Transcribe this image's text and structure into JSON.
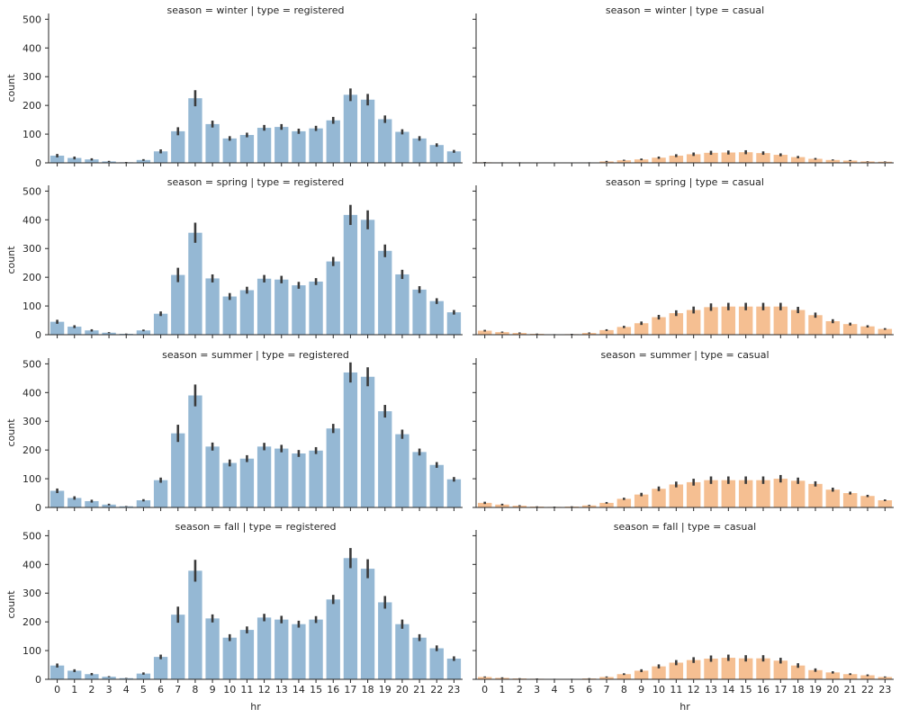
{
  "chart_data": {
    "type": "bar",
    "x_label": "hr",
    "y_label": "count",
    "ylim": [
      0,
      520
    ],
    "y_ticks": [
      0,
      100,
      200,
      300,
      400,
      500
    ],
    "categories": [
      "0",
      "1",
      "2",
      "3",
      "4",
      "5",
      "6",
      "7",
      "8",
      "9",
      "10",
      "11",
      "12",
      "13",
      "14",
      "15",
      "16",
      "17",
      "18",
      "19",
      "20",
      "21",
      "22",
      "23"
    ],
    "colors": {
      "registered": "#95b8d4",
      "casual": "#f5bf92",
      "error_bar": "#3a3a3a",
      "axis": "#262626"
    },
    "panels": [
      {
        "title": "season = winter | type = registered",
        "type": "registered",
        "values": [
          25,
          17,
          12,
          5,
          2,
          10,
          40,
          110,
          225,
          135,
          85,
          97,
          122,
          125,
          110,
          120,
          148,
          237,
          220,
          152,
          108,
          85,
          62,
          40
        ],
        "errors": [
          6,
          5,
          4,
          2,
          1,
          3,
          7,
          14,
          28,
          12,
          8,
          8,
          10,
          10,
          9,
          9,
          12,
          22,
          20,
          13,
          9,
          8,
          6,
          5
        ]
      },
      {
        "title": "season = winter | type = casual",
        "type": "casual",
        "values": [
          2,
          1,
          1,
          0,
          0,
          0,
          1,
          5,
          9,
          12,
          18,
          25,
          30,
          35,
          36,
          37,
          34,
          28,
          20,
          14,
          10,
          8,
          5,
          4
        ],
        "errors": [
          1,
          1,
          1,
          0,
          0,
          0,
          1,
          2,
          2,
          3,
          4,
          5,
          6,
          7,
          7,
          7,
          6,
          5,
          4,
          3,
          2,
          2,
          1,
          1
        ]
      },
      {
        "title": "season = spring | type = registered",
        "type": "registered",
        "values": [
          45,
          28,
          15,
          7,
          3,
          15,
          73,
          208,
          355,
          196,
          133,
          155,
          195,
          192,
          172,
          185,
          255,
          417,
          400,
          292,
          210,
          157,
          117,
          78
        ],
        "errors": [
          7,
          5,
          4,
          2,
          1,
          3,
          8,
          25,
          35,
          14,
          12,
          12,
          13,
          13,
          12,
          12,
          16,
          35,
          33,
          22,
          16,
          12,
          10,
          8
        ]
      },
      {
        "title": "season = spring | type = casual",
        "type": "casual",
        "values": [
          14,
          9,
          6,
          3,
          1,
          2,
          6,
          16,
          27,
          40,
          61,
          75,
          86,
          96,
          98,
          98,
          98,
          98,
          86,
          68,
          47,
          37,
          29,
          20
        ],
        "errors": [
          3,
          2,
          2,
          1,
          1,
          1,
          2,
          3,
          4,
          6,
          8,
          10,
          12,
          13,
          13,
          13,
          13,
          13,
          11,
          9,
          7,
          5,
          4,
          3
        ]
      },
      {
        "title": "season = summer | type = registered",
        "type": "registered",
        "values": [
          58,
          33,
          22,
          10,
          4,
          25,
          95,
          258,
          390,
          212,
          155,
          170,
          212,
          205,
          188,
          198,
          275,
          470,
          455,
          335,
          255,
          193,
          148,
          98
        ],
        "errors": [
          8,
          6,
          5,
          3,
          1,
          4,
          9,
          30,
          38,
          14,
          12,
          12,
          13,
          13,
          12,
          12,
          16,
          35,
          33,
          22,
          16,
          12,
          10,
          8
        ]
      },
      {
        "title": "season = summer | type = casual",
        "type": "casual",
        "values": [
          16,
          10,
          6,
          3,
          2,
          3,
          7,
          16,
          30,
          45,
          65,
          80,
          88,
          95,
          95,
          95,
          95,
          100,
          93,
          82,
          62,
          50,
          40,
          25
        ],
        "errors": [
          4,
          3,
          2,
          1,
          1,
          1,
          2,
          3,
          4,
          6,
          8,
          10,
          12,
          13,
          13,
          13,
          13,
          13,
          11,
          9,
          7,
          5,
          4,
          3
        ]
      },
      {
        "title": "season = fall | type = registered",
        "type": "registered",
        "values": [
          48,
          30,
          18,
          9,
          4,
          20,
          78,
          225,
          378,
          212,
          145,
          172,
          215,
          208,
          192,
          208,
          278,
          422,
          385,
          268,
          192,
          145,
          108,
          72
        ],
        "errors": [
          7,
          5,
          4,
          2,
          1,
          4,
          8,
          28,
          38,
          14,
          12,
          12,
          13,
          13,
          12,
          12,
          16,
          35,
          33,
          22,
          16,
          12,
          10,
          8
        ]
      },
      {
        "title": "season = fall | type = casual",
        "type": "casual",
        "values": [
          8,
          5,
          3,
          2,
          1,
          1,
          3,
          8,
          18,
          30,
          45,
          58,
          67,
          72,
          75,
          73,
          73,
          65,
          48,
          32,
          24,
          18,
          14,
          8
        ],
        "errors": [
          2,
          2,
          1,
          1,
          1,
          1,
          1,
          2,
          3,
          5,
          7,
          9,
          10,
          11,
          11,
          11,
          11,
          10,
          8,
          6,
          4,
          3,
          3,
          2
        ]
      }
    ]
  }
}
